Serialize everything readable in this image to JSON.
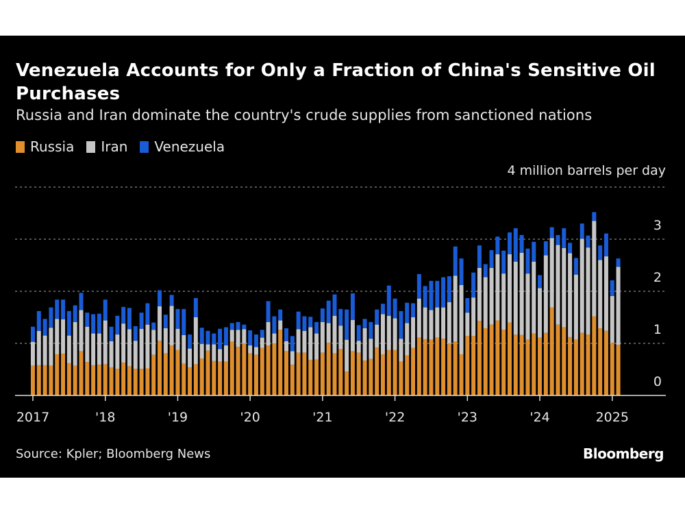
{
  "colors": {
    "background": "#000000",
    "Russia": "#e08f2e",
    "Iran": "#c6c6c6",
    "Venezuela": "#1a5bd6",
    "grid": "#8a8a8a",
    "axis": "#e0e0e0"
  },
  "header": {
    "title": "Venezuela Accounts for Only a Fraction of China's Sensitive Oil Purchases",
    "subtitle": "Russia and Iran dominate the country's crude supplies from sanctioned nations"
  },
  "legend": [
    {
      "label": "Russia",
      "color_key": "Russia"
    },
    {
      "label": "Iran",
      "color_key": "Iran"
    },
    {
      "label": "Venezuela",
      "color_key": "Venezuela"
    }
  ],
  "footer": {
    "source": "Source: Kpler; Bloomberg News",
    "brand": "Bloomberg"
  },
  "chart_data": {
    "type": "bar",
    "stacked": true,
    "title": "Venezuela Accounts for Only a Fraction of China's Sensitive Oil Purchases",
    "subtitle": "Russia and Iran dominate the country's crude supplies from sanctioned nations",
    "ylabel": "4 million barrels per day",
    "unit_label": "4 million barrels per day",
    "xlabel": "",
    "ylim": [
      0,
      4
    ],
    "yticks": [
      0,
      1,
      2,
      3,
      4
    ],
    "ytick_labels": [
      "0",
      "1",
      "2",
      "3",
      ""
    ],
    "grid": true,
    "legend_position": "top-left",
    "frequency": "monthly",
    "start": "2017-01",
    "end": "2025-02",
    "xticks": [
      "2017",
      "'18",
      "'19",
      "'20",
      "'21",
      "'22",
      "'23",
      "'24",
      "2025"
    ],
    "series": [
      {
        "name": "Russia",
        "values": [
          0.57,
          0.58,
          0.58,
          0.57,
          0.79,
          0.8,
          0.62,
          0.57,
          0.85,
          0.64,
          0.58,
          0.59,
          0.6,
          0.54,
          0.51,
          0.63,
          0.56,
          0.51,
          0.51,
          0.52,
          0.78,
          1.05,
          0.81,
          0.96,
          0.87,
          0.61,
          0.54,
          0.6,
          0.71,
          0.86,
          0.66,
          0.65,
          0.65,
          1.03,
          0.93,
          1.0,
          0.81,
          0.78,
          0.91,
          0.96,
          1.0,
          1.26,
          0.85,
          0.59,
          0.82,
          0.82,
          0.68,
          0.69,
          0.82,
          1.01,
          0.81,
          0.89,
          0.46,
          0.85,
          0.82,
          0.67,
          0.7,
          0.92,
          0.79,
          0.87,
          0.87,
          0.65,
          0.77,
          0.91,
          1.11,
          1.08,
          1.07,
          1.11,
          1.09,
          1.0,
          1.03,
          0.79,
          1.14,
          1.14,
          1.43,
          1.29,
          1.36,
          1.44,
          1.26,
          1.4,
          1.17,
          1.16,
          1.07,
          1.19,
          1.11,
          1.2,
          1.69,
          1.36,
          1.31,
          1.12,
          1.07,
          1.2,
          1.17,
          1.52,
          1.29,
          1.24,
          1.01,
          0.97
        ]
      },
      {
        "name": "Iran",
        "values": [
          0.46,
          0.66,
          0.57,
          0.73,
          0.68,
          0.66,
          0.53,
          0.84,
          0.79,
          0.68,
          0.61,
          0.6,
          0.84,
          0.5,
          0.66,
          0.75,
          0.71,
          0.54,
          0.77,
          0.84,
          0.48,
          0.66,
          0.48,
          0.76,
          0.41,
          0.55,
          0.36,
          0.9,
          0.28,
          0.12,
          0.32,
          0.24,
          0.31,
          0.23,
          0.33,
          0.27,
          0.15,
          0.15,
          0.2,
          0.45,
          0.19,
          0.18,
          0.19,
          0.26,
          0.45,
          0.42,
          0.63,
          0.5,
          0.59,
          0.38,
          0.72,
          0.45,
          0.61,
          0.6,
          0.23,
          0.62,
          0.39,
          0.44,
          0.77,
          0.66,
          0.61,
          0.44,
          0.62,
          0.59,
          0.75,
          0.61,
          0.57,
          0.58,
          0.6,
          0.79,
          1.27,
          1.33,
          0.45,
          0.74,
          1.02,
          0.98,
          1.09,
          1.27,
          1.08,
          1.31,
          1.4,
          1.58,
          1.27,
          1.38,
          0.95,
          1.49,
          1.33,
          1.53,
          1.52,
          1.61,
          1.25,
          1.81,
          1.67,
          1.83,
          1.31,
          1.43,
          0.9,
          1.5
        ]
      },
      {
        "name": "Venezuela",
        "values": [
          0.29,
          0.38,
          0.32,
          0.39,
          0.37,
          0.38,
          0.47,
          0.32,
          0.33,
          0.27,
          0.37,
          0.38,
          0.4,
          0.28,
          0.36,
          0.32,
          0.41,
          0.28,
          0.31,
          0.41,
          0.14,
          0.31,
          0.26,
          0.21,
          0.38,
          0.5,
          0.27,
          0.37,
          0.31,
          0.26,
          0.21,
          0.39,
          0.35,
          0.13,
          0.15,
          0.09,
          0.29,
          0.24,
          0.15,
          0.4,
          0.33,
          0.21,
          0.25,
          0.29,
          0.34,
          0.28,
          0.2,
          0.22,
          0.26,
          0.43,
          0.41,
          0.32,
          0.58,
          0.51,
          0.3,
          0.18,
          0.32,
          0.29,
          0.2,
          0.58,
          0.38,
          0.53,
          0.39,
          0.27,
          0.47,
          0.41,
          0.56,
          0.51,
          0.58,
          0.5,
          0.56,
          0.51,
          0.28,
          0.48,
          0.43,
          0.25,
          0.34,
          0.34,
          0.44,
          0.42,
          0.64,
          0.34,
          0.48,
          0.38,
          0.25,
          0.27,
          0.21,
          0.19,
          0.38,
          0.2,
          0.32,
          0.29,
          0.23,
          0.17,
          0.28,
          0.44,
          0.3,
          0.16
        ]
      }
    ]
  }
}
